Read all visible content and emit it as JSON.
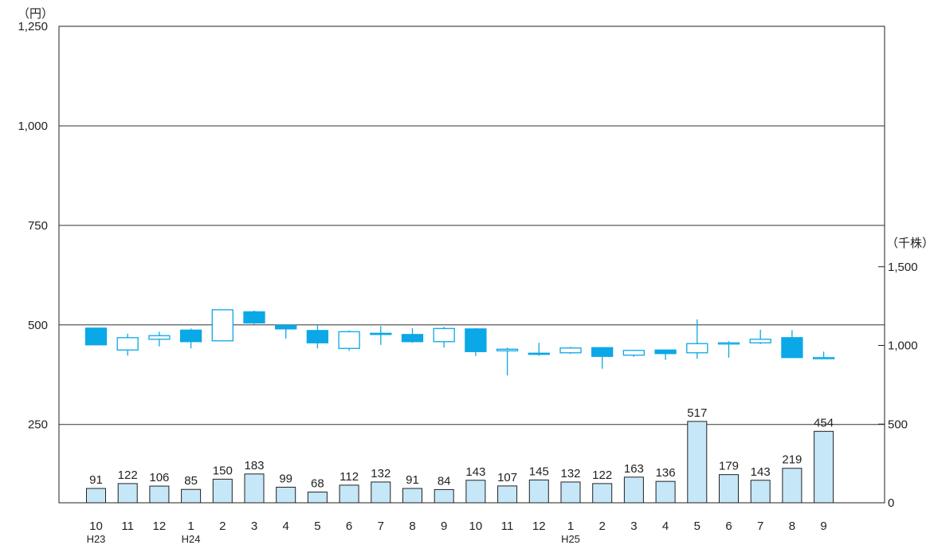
{
  "chart_data": {
    "type": "candlestick+bar",
    "left_axis": {
      "unit": "（円）",
      "ticks": [
        "1,250",
        "1,000",
        "750",
        "500",
        "250"
      ],
      "tick_values": [
        1250,
        1000,
        750,
        500,
        250
      ],
      "ylim": [
        0,
        1250
      ]
    },
    "right_axis": {
      "unit": "（千株）",
      "ticks": [
        "1,500",
        "1,000",
        "500",
        "0"
      ],
      "tick_values": [
        1500,
        1000,
        500,
        0
      ]
    },
    "months": [
      "10",
      "11",
      "12",
      "1",
      "2",
      "3",
      "4",
      "5",
      "6",
      "7",
      "8",
      "9",
      "10",
      "11",
      "12",
      "1",
      "2",
      "3",
      "4",
      "5",
      "6",
      "7",
      "8",
      "9"
    ],
    "era_labels": [
      "H23",
      "",
      "",
      "H24",
      "",
      "",
      "",
      "",
      "",
      "",
      "",
      "",
      "",
      "",
      "",
      "H25",
      "",
      "",
      "",
      "",
      "",
      "",
      "",
      ""
    ],
    "candles": [
      {
        "open": 492,
        "high": 492,
        "low": 450,
        "close": 450
      },
      {
        "open": 437,
        "high": 478,
        "low": 423,
        "close": 468
      },
      {
        "open": 464,
        "high": 483,
        "low": 446,
        "close": 473
      },
      {
        "open": 487,
        "high": 491,
        "low": 441,
        "close": 458
      },
      {
        "open": 460,
        "high": 538,
        "low": 460,
        "close": 538
      },
      {
        "open": 533,
        "high": 536,
        "low": 502,
        "close": 505
      },
      {
        "open": 499,
        "high": 502,
        "low": 466,
        "close": 490
      },
      {
        "open": 486,
        "high": 500,
        "low": 441,
        "close": 455
      },
      {
        "open": 441,
        "high": 486,
        "low": 435,
        "close": 483
      },
      {
        "open": 479,
        "high": 497,
        "low": 450,
        "close": 477
      },
      {
        "open": 476,
        "high": 492,
        "low": 455,
        "close": 458
      },
      {
        "open": 458,
        "high": 495,
        "low": 443,
        "close": 491
      },
      {
        "open": 490,
        "high": 492,
        "low": 422,
        "close": 433
      },
      {
        "open": 435,
        "high": 443,
        "low": 373,
        "close": 439
      },
      {
        "open": 429,
        "high": 455,
        "low": 423,
        "close": 428
      },
      {
        "open": 430,
        "high": 445,
        "low": 427,
        "close": 442
      },
      {
        "open": 443,
        "high": 444,
        "low": 390,
        "close": 421
      },
      {
        "open": 424,
        "high": 437,
        "low": 420,
        "close": 436
      },
      {
        "open": 437,
        "high": 437,
        "low": 412,
        "close": 428
      },
      {
        "open": 430,
        "high": 514,
        "low": 415,
        "close": 453
      },
      {
        "open": 452,
        "high": 459,
        "low": 418,
        "close": 455
      },
      {
        "open": 455,
        "high": 488,
        "low": 452,
        "close": 464
      },
      {
        "open": 468,
        "high": 487,
        "low": 418,
        "close": 418
      },
      {
        "open": 418,
        "high": 433,
        "low": 418,
        "close": 418
      }
    ],
    "volume": [
      91,
      122,
      106,
      85,
      150,
      183,
      99,
      68,
      112,
      132,
      91,
      84,
      143,
      107,
      145,
      132,
      122,
      163,
      136,
      517,
      179,
      143,
      219,
      454
    ],
    "volume_labels": [
      "91",
      "122",
      "106",
      "85",
      "150",
      "183",
      "99",
      "68",
      "112",
      "132",
      "91",
      "84",
      "143",
      "107",
      "145",
      "132",
      "122",
      "163",
      "136",
      "517",
      "179",
      "143",
      "219",
      "454"
    ],
    "grid": true,
    "colors": {
      "bearish_fill": "#0aa8e6",
      "bullish_fill": "#ffffff",
      "candle_stroke": "#0aa8e6",
      "volume_fill": "#c5e7f7",
      "volume_stroke": "#222222",
      "axis": "#222222",
      "grid": "#333333"
    }
  }
}
